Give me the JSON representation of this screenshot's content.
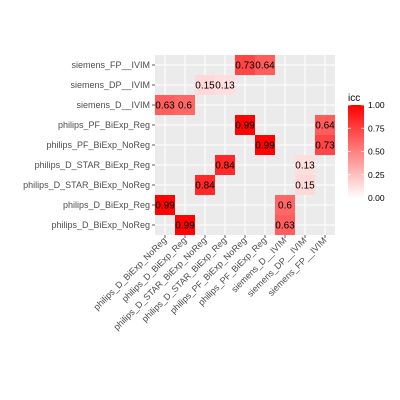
{
  "chart_data": {
    "type": "heatmap",
    "x_categories": [
      "philips_D_BiExp_NoReg",
      "philips_D_BiExp_Reg",
      "philips_D_STAR_BiExp_NoReg",
      "philips_D_STAR_BiExp_Reg",
      "philips_PF_BiExp_NoReg",
      "philips_PF_BiExp_Reg",
      "siemens_D__IVIM",
      "siemens_DP__IVIM",
      "siemens_FP__IVIM"
    ],
    "y_categories": [
      "siemens_FP__IVIM",
      "siemens_DP__IVIM",
      "siemens_D__IVIM",
      "philips_PF_BiExp_Reg",
      "philips_PF_BiExp_NoReg",
      "philips_D_STAR_BiExp_Reg",
      "philips_D_STAR_BiExp_NoReg",
      "philips_D_BiExp_Reg",
      "philips_D_BiExp_NoReg"
    ],
    "cells": [
      {
        "x": "philips_PF_BiExp_NoReg",
        "y": "siemens_FP__IVIM",
        "value": 0.73,
        "label": "0.73"
      },
      {
        "x": "philips_PF_BiExp_Reg",
        "y": "siemens_FP__IVIM",
        "value": 0.64,
        "label": "0.64"
      },
      {
        "x": "philips_D_STAR_BiExp_NoReg",
        "y": "siemens_DP__IVIM",
        "value": 0.15,
        "label": "0.15"
      },
      {
        "x": "philips_D_STAR_BiExp_Reg",
        "y": "siemens_DP__IVIM",
        "value": 0.13,
        "label": "0.13"
      },
      {
        "x": "philips_D_BiExp_NoReg",
        "y": "siemens_D__IVIM",
        "value": 0.63,
        "label": "0.63"
      },
      {
        "x": "philips_D_BiExp_Reg",
        "y": "siemens_D__IVIM",
        "value": 0.6,
        "label": "0.6"
      },
      {
        "x": "philips_PF_BiExp_NoReg",
        "y": "philips_PF_BiExp_Reg",
        "value": 0.99,
        "label": "0.99"
      },
      {
        "x": "siemens_FP__IVIM",
        "y": "philips_PF_BiExp_Reg",
        "value": 0.64,
        "label": "0.64"
      },
      {
        "x": "philips_PF_BiExp_Reg",
        "y": "philips_PF_BiExp_NoReg",
        "value": 0.99,
        "label": "0.99"
      },
      {
        "x": "siemens_FP__IVIM",
        "y": "philips_PF_BiExp_NoReg",
        "value": 0.73,
        "label": "0.73"
      },
      {
        "x": "philips_D_STAR_BiExp_Reg",
        "y": "philips_D_STAR_BiExp_Reg",
        "value": 0.84,
        "label": "0.84"
      },
      {
        "x": "siemens_DP__IVIM",
        "y": "philips_D_STAR_BiExp_Reg",
        "value": 0.13,
        "label": "0.13"
      },
      {
        "x": "philips_D_STAR_BiExp_NoReg",
        "y": "philips_D_STAR_BiExp_NoReg",
        "value": 0.84,
        "label": "0.84"
      },
      {
        "x": "siemens_DP__IVIM",
        "y": "philips_D_STAR_BiExp_NoReg",
        "value": 0.15,
        "label": "0.15"
      },
      {
        "x": "philips_D_BiExp_NoReg",
        "y": "philips_D_BiExp_Reg",
        "value": 0.99,
        "label": "0.99"
      },
      {
        "x": "siemens_D__IVIM",
        "y": "philips_D_BiExp_Reg",
        "value": 0.6,
        "label": "0.6"
      },
      {
        "x": "philips_D_BiExp_Reg",
        "y": "philips_D_BiExp_NoReg",
        "value": 0.99,
        "label": "0.99"
      },
      {
        "x": "siemens_D__IVIM",
        "y": "philips_D_BiExp_NoReg",
        "value": 0.63,
        "label": "0.63"
      }
    ],
    "legend": {
      "title": "icc",
      "ticks": [
        "0.00",
        "0.25",
        "0.50",
        "0.75",
        "1.00"
      ],
      "range": [
        0,
        1
      ],
      "placement": "right"
    },
    "grid": true,
    "xlabel": "",
    "ylabel": "",
    "title": "",
    "colors": {
      "low": "#ffffff",
      "high": "#ff0000",
      "panel_background": "#ebebeb",
      "grid": "#ffffff"
    }
  }
}
